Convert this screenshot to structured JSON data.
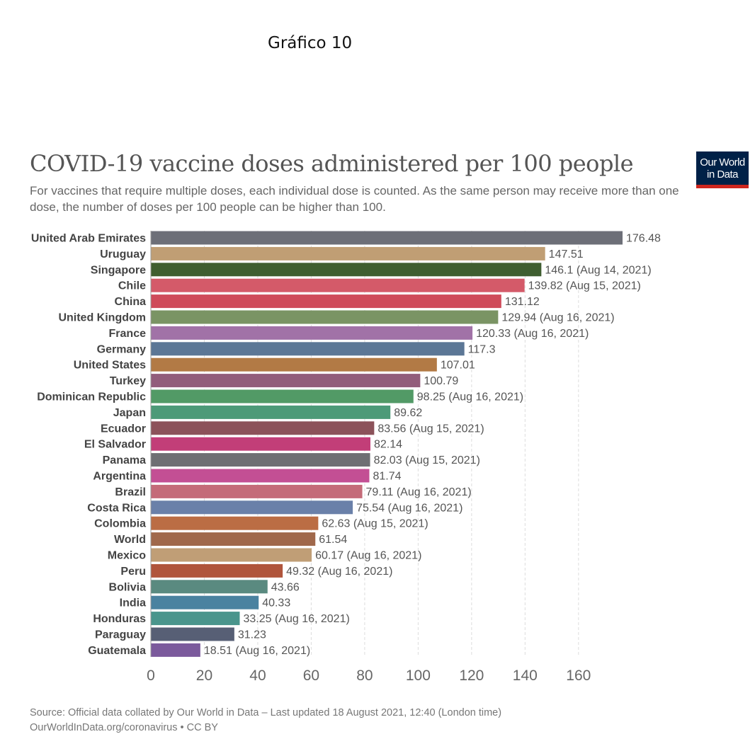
{
  "page_heading": "Gráfico 10",
  "logo": {
    "line1": "Our World",
    "line2": "in Data"
  },
  "footer": {
    "source": "Source: Official data collated by Our World in Data – Last updated 18 August 2021, 12:40 (London time)",
    "link": "OurWorldInData.org/coronavirus • CC BY"
  },
  "colors": {
    "grid": "#dddddd",
    "label": "#444444",
    "value": "#555555",
    "tick": "#666666",
    "logo_bg": "#002147",
    "logo_accent": "#ce261e"
  },
  "chart_data": {
    "type": "bar",
    "orientation": "horizontal",
    "title": "COVID-19 vaccine doses administered per 100 people",
    "subtitle": "For vaccines that require multiple doses, each individual dose is counted. As the same person may receive more than one dose, the number of doses per 100 people can be higher than 100.",
    "xlim": [
      0,
      176.48
    ],
    "xticks": [
      0,
      20,
      40,
      60,
      80,
      100,
      120,
      140,
      160
    ],
    "grid": true,
    "bars": [
      {
        "category": "United Arab Emirates",
        "value": 176.48,
        "label": "176.48",
        "color": "#6d6f78"
      },
      {
        "category": "Uruguay",
        "value": 147.51,
        "label": "147.51",
        "color": "#c09e74"
      },
      {
        "category": "Singapore",
        "value": 146.1,
        "label": "146.1 (Aug 14, 2021)",
        "color": "#3f5e30"
      },
      {
        "category": "Chile",
        "value": 139.82,
        "label": "139.82 (Aug 15, 2021)",
        "color": "#d45a69"
      },
      {
        "category": "China",
        "value": 131.12,
        "label": "131.12",
        "color": "#cf4b5a"
      },
      {
        "category": "United Kingdom",
        "value": 129.94,
        "label": "129.94 (Aug 16, 2021)",
        "color": "#7a9464"
      },
      {
        "category": "France",
        "value": 120.33,
        "label": "120.33 (Aug 16, 2021)",
        "color": "#a172a7"
      },
      {
        "category": "Germany",
        "value": 117.3,
        "label": "117.3",
        "color": "#5c7796"
      },
      {
        "category": "United States",
        "value": 107.01,
        "label": "107.01",
        "color": "#b27a45"
      },
      {
        "category": "Turkey",
        "value": 100.79,
        "label": "100.79",
        "color": "#925d7b"
      },
      {
        "category": "Dominican Republic",
        "value": 98.25,
        "label": "98.25 (Aug 16, 2021)",
        "color": "#529a66"
      },
      {
        "category": "Japan",
        "value": 89.62,
        "label": "89.62",
        "color": "#4d9a78"
      },
      {
        "category": "Ecuador",
        "value": 83.56,
        "label": "83.56 (Aug 15, 2021)",
        "color": "#8c525a"
      },
      {
        "category": "El Salvador",
        "value": 82.14,
        "label": "82.14",
        "color": "#c23e78"
      },
      {
        "category": "Panama",
        "value": 82.03,
        "label": "82.03 (Aug 15, 2021)",
        "color": "#6e6f73"
      },
      {
        "category": "Argentina",
        "value": 81.74,
        "label": "81.74",
        "color": "#c34f94"
      },
      {
        "category": "Brazil",
        "value": 79.11,
        "label": "79.11 (Aug 16, 2021)",
        "color": "#c46b79"
      },
      {
        "category": "Costa Rica",
        "value": 75.54,
        "label": "75.54 (Aug 16, 2021)",
        "color": "#6a80a9"
      },
      {
        "category": "Colombia",
        "value": 62.63,
        "label": "62.63 (Aug 15, 2021)",
        "color": "#bb6d44"
      },
      {
        "category": "World",
        "value": 61.54,
        "label": "61.54",
        "color": "#a0684b"
      },
      {
        "category": "Mexico",
        "value": 60.17,
        "label": "60.17 (Aug 16, 2021)",
        "color": "#c09e76"
      },
      {
        "category": "Peru",
        "value": 49.32,
        "label": "49.32 (Aug 16, 2021)",
        "color": "#b0553c"
      },
      {
        "category": "Bolivia",
        "value": 43.66,
        "label": "43.66",
        "color": "#5a8a80"
      },
      {
        "category": "India",
        "value": 40.33,
        "label": "40.33",
        "color": "#4a82a0"
      },
      {
        "category": "Honduras",
        "value": 33.25,
        "label": "33.25 (Aug 16, 2021)",
        "color": "#4a958c"
      },
      {
        "category": "Paraguay",
        "value": 31.23,
        "label": "31.23",
        "color": "#575f75"
      },
      {
        "category": "Guatemala",
        "value": 18.51,
        "label": "18.51 (Aug 16, 2021)",
        "color": "#7b5a9c"
      }
    ]
  }
}
